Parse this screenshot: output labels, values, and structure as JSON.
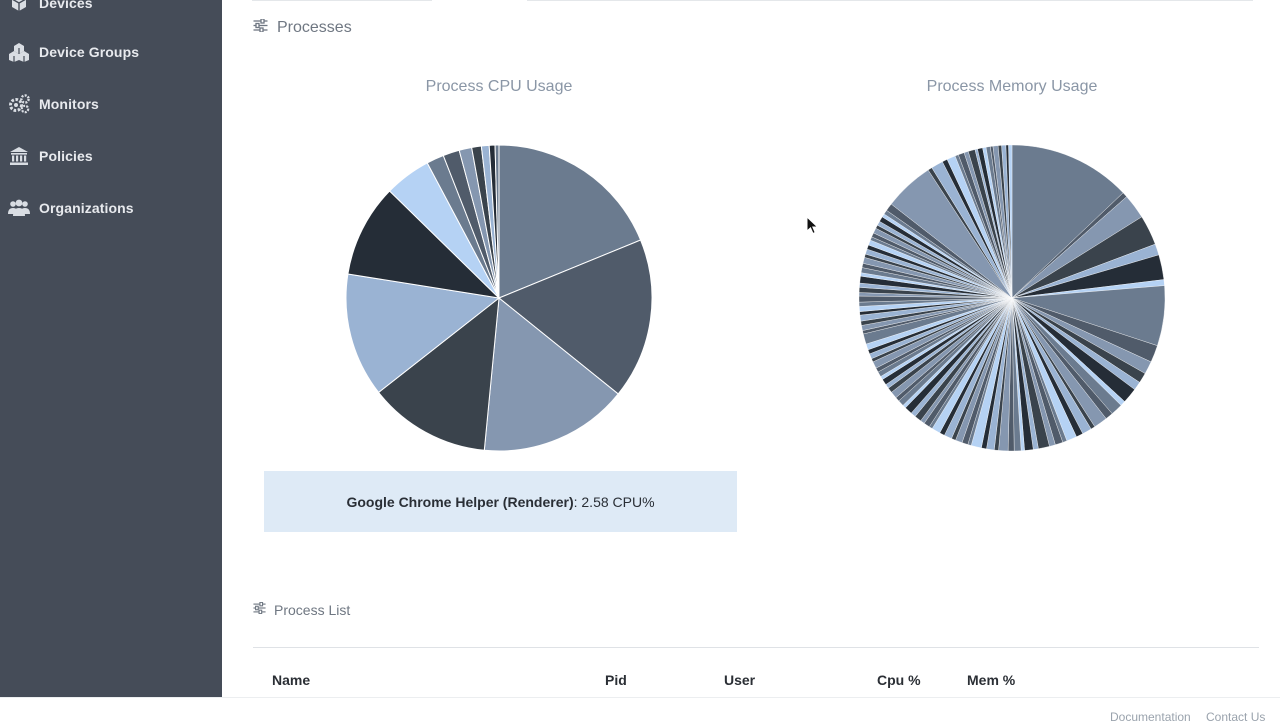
{
  "sidebar": {
    "items": [
      {
        "label": "Devices",
        "icon": "cube-icon"
      },
      {
        "label": "Device Groups",
        "icon": "cubes-icon"
      },
      {
        "label": "Monitors",
        "icon": "gears-icon"
      },
      {
        "label": "Policies",
        "icon": "bank-icon"
      },
      {
        "label": "Organizations",
        "icon": "users-icon"
      }
    ]
  },
  "processes": {
    "section_title": "Processes",
    "cpu_chart_title": "Process CPU Usage",
    "memory_chart_title": "Process Memory Usage",
    "tooltip": {
      "name": "Google Chrome Helper (Renderer)",
      "value": ": 2.58 CPU%"
    }
  },
  "process_list": {
    "section_title": "Process List",
    "columns": [
      "Name",
      "Pid",
      "User",
      "Cpu %",
      "Mem %"
    ]
  },
  "footer": {
    "documentation": "Documentation",
    "contact": "Contact Us"
  },
  "colors": {
    "sidebar_bg": "#454c58",
    "slate": "#6b7b8f",
    "dark_slate": "#505b6a",
    "steel": "#8597b0",
    "charcoal": "#3a434c",
    "light_steel": "#9ab3d3",
    "navy": "#252d37",
    "pale_blue": "#b5d2f4",
    "tooltip_bg": "#deeaf6"
  },
  "chart_data": [
    {
      "type": "pie",
      "title": "Process CPU Usage",
      "values": [
        18.4,
        16.6,
        15.4,
        12.6,
        12.8,
        9.6,
        4.8,
        1.8,
        1.7,
        1.3,
        1.0,
        0.8,
        0.6,
        0.4
      ],
      "colors": [
        "#6b7b8f",
        "#505b6a",
        "#8597b0",
        "#3a434c",
        "#9ab3d3",
        "#252d37",
        "#b5d2f4",
        "#6b7b8f",
        "#505b6a",
        "#8597b0",
        "#3a434c",
        "#9ab3d3",
        "#252d37",
        "#6b7b8f"
      ]
    },
    {
      "type": "pie",
      "title": "Process Memory Usage",
      "values": [
        14.3,
        0.6,
        2.9,
        3.5,
        1.3,
        2.9,
        0.7,
        7.0,
        2.0,
        1.5,
        1.2,
        1.0,
        1.8,
        0.6,
        1.4,
        0.9,
        1.6,
        0.5,
        1.1,
        0.8,
        1.2,
        0.5,
        0.9,
        0.7,
        1.3,
        0.6,
        1.0,
        0.4,
        0.8,
        0.7,
        1.1,
        0.5,
        0.9,
        0.6,
        1.2,
        0.4,
        0.7,
        0.8,
        0.5,
        0.9,
        0.6,
        1.0,
        0.4,
        0.7,
        0.5,
        0.8,
        0.6,
        0.9,
        0.4,
        0.7,
        0.5,
        0.8,
        0.6,
        0.5,
        0.7,
        0.4,
        0.6,
        0.5,
        0.8,
        0.4,
        0.6,
        0.5,
        0.7,
        1.2,
        0.4,
        0.6,
        0.5,
        0.7,
        0.4,
        0.6,
        0.5,
        0.7,
        0.4,
        0.6,
        0.5,
        0.8,
        0.4,
        0.6,
        0.5,
        0.7,
        0.4,
        0.6,
        0.5,
        0.6,
        0.4,
        0.5,
        0.6,
        0.4,
        0.5,
        0.6,
        0.4,
        0.5,
        0.9,
        5.8,
        0.5,
        1.4,
        0.6,
        1.0,
        0.4,
        0.7,
        0.5,
        0.8,
        0.3,
        0.6,
        0.4,
        0.5,
        0.3,
        0.6,
        0.4,
        0.5,
        0.3,
        0.4
      ],
      "colors": [
        "#6b7b8f",
        "#505b6a",
        "#8597b0",
        "#3a434c",
        "#9ab3d3",
        "#252d37",
        "#b5d2f4"
      ]
    }
  ]
}
